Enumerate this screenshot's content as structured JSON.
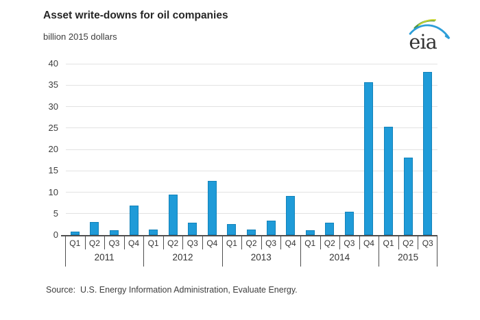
{
  "header": {
    "title": "Asset write-downs for oil companies",
    "subtitle": "billion 2015 dollars",
    "logo_text": "eia"
  },
  "chart_data": {
    "type": "bar",
    "title": "Asset write-downs for oil companies",
    "ylabel": "billion 2015 dollars",
    "ylim": [
      0,
      40
    ],
    "ytick_interval": 5,
    "yticks": [
      0,
      5,
      10,
      15,
      20,
      25,
      30,
      35,
      40
    ],
    "grid": "horizontal",
    "legend": "none",
    "bar_color": "#1f9bd8",
    "groups": [
      {
        "year": "2011",
        "quarters": [
          "Q1",
          "Q2",
          "Q3",
          "Q4"
        ],
        "values": [
          0.8,
          3.1,
          1.1,
          6.8
        ]
      },
      {
        "year": "2012",
        "quarters": [
          "Q1",
          "Q2",
          "Q3",
          "Q4"
        ],
        "values": [
          1.2,
          9.4,
          2.8,
          12.6
        ]
      },
      {
        "year": "2013",
        "quarters": [
          "Q1",
          "Q2",
          "Q3",
          "Q4"
        ],
        "values": [
          2.5,
          1.2,
          3.4,
          9.2
        ]
      },
      {
        "year": "2014",
        "quarters": [
          "Q1",
          "Q2",
          "Q3",
          "Q4"
        ],
        "values": [
          1.1,
          2.9,
          5.4,
          35.7
        ]
      },
      {
        "year": "2015",
        "quarters": [
          "Q1",
          "Q2",
          "Q3"
        ],
        "values": [
          25.2,
          18.0,
          38.1
        ]
      }
    ]
  },
  "footer": {
    "source": "Source:  U.S. Energy Information Administration, Evaluate Energy."
  },
  "logo": {
    "name": "eia-logo",
    "text_color": "#333333",
    "swoosh_blue": "#2d9ed8",
    "swoosh_green": "#4e9644",
    "swoosh_yellow": "#c3d32f"
  }
}
